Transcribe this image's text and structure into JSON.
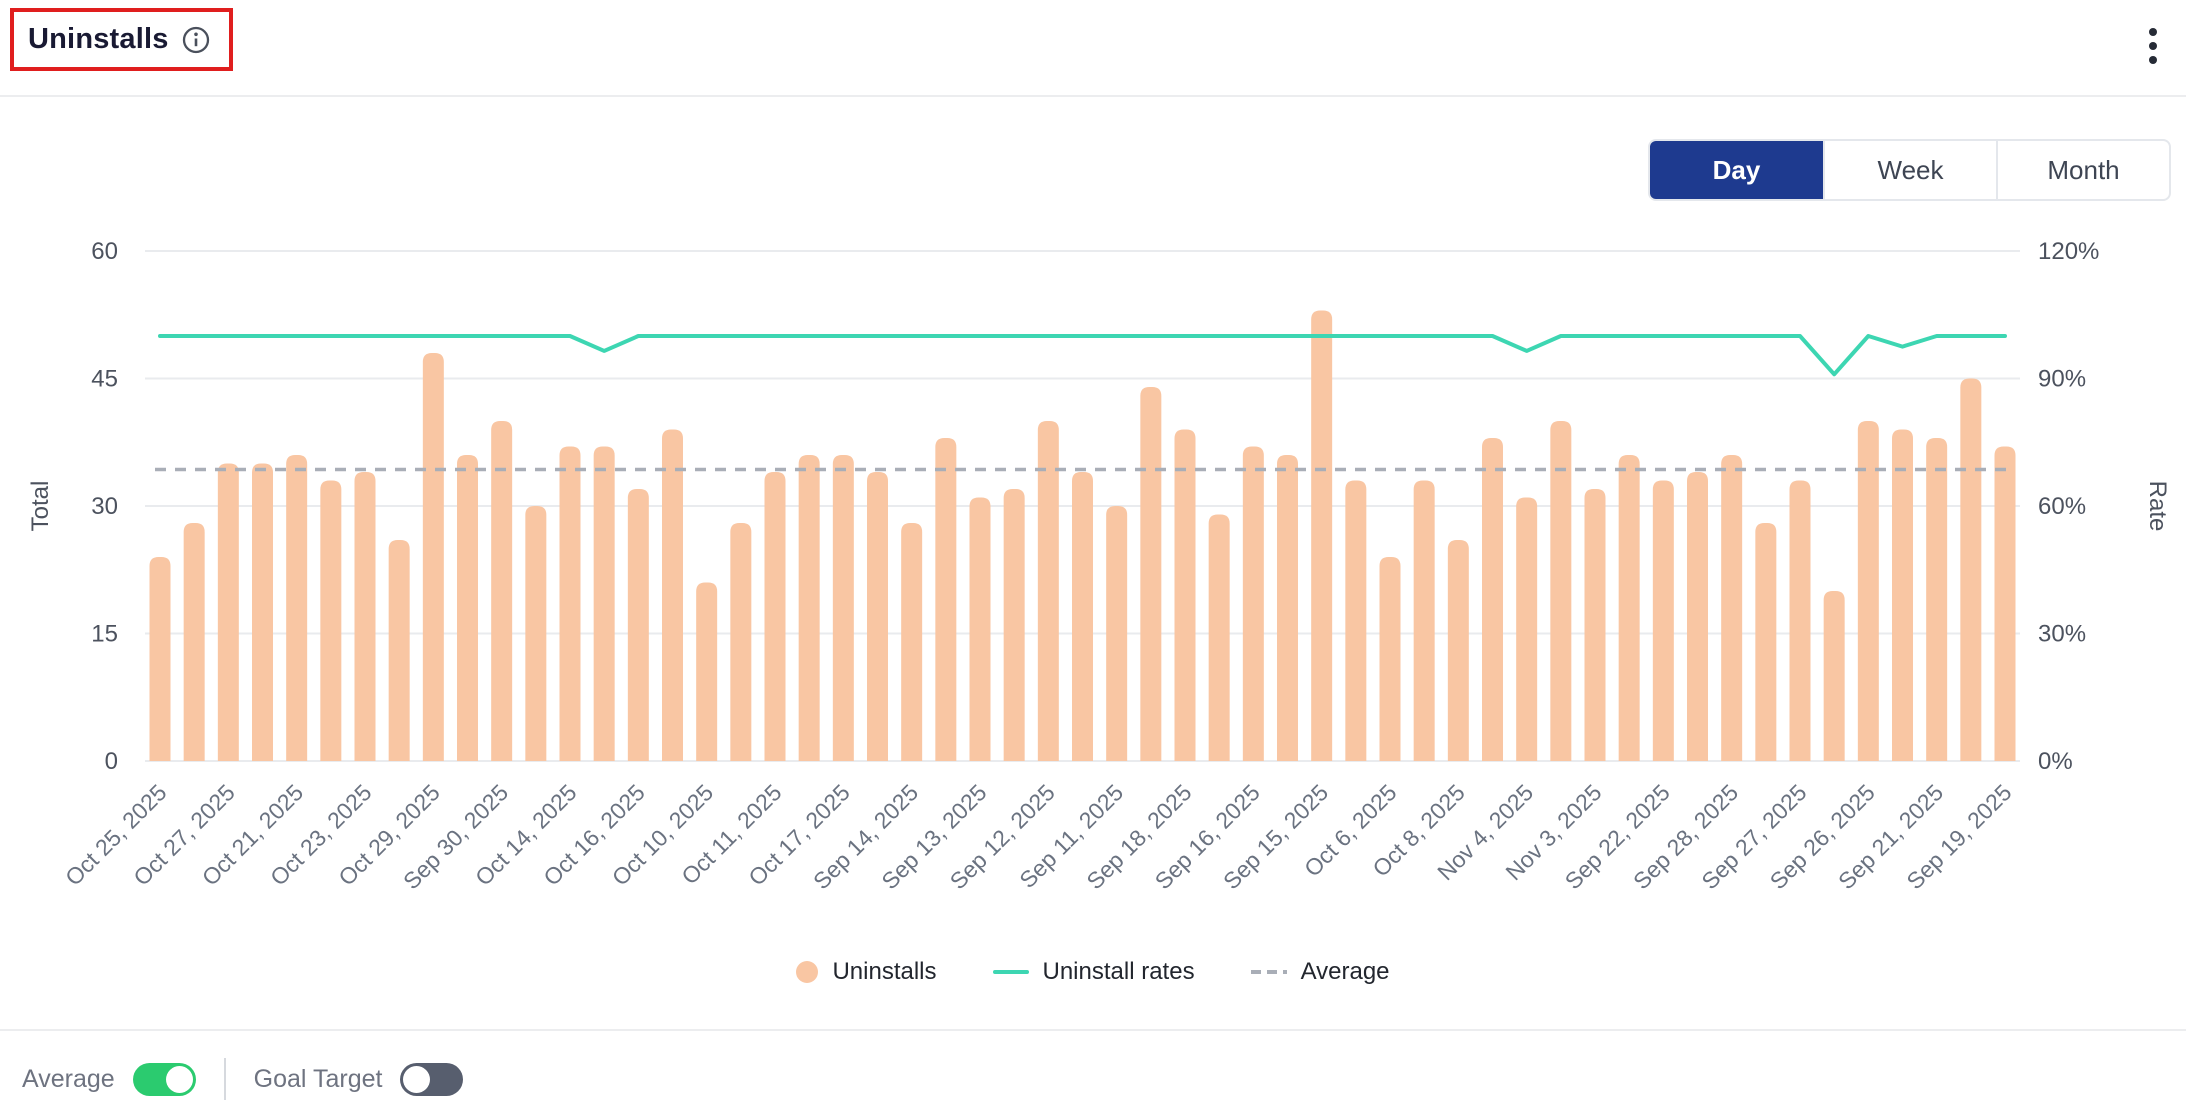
{
  "header": {
    "title": "Uninstalls"
  },
  "menu": {
    "kebab": "more-options"
  },
  "period_toggle": {
    "options": [
      "Day",
      "Week",
      "Month"
    ],
    "selected": "Day"
  },
  "colors": {
    "bar": "#F9C6A3",
    "rate_line": "#3DD6B2",
    "average_line": "#A9AEB7",
    "accent_selected": "#1E3A8F",
    "toggle_on": "#2BCB6F",
    "toggle_off": "#575E6E",
    "highlight_box": "#E01E1E"
  },
  "chart_data": {
    "type": "bar",
    "title": "Uninstalls",
    "grid": true,
    "legend_position": "bottom",
    "left_axis": {
      "label": "Total",
      "ticks": [
        0,
        15,
        30,
        45,
        60
      ],
      "max": 60
    },
    "right_axis": {
      "label": "Rate",
      "ticks": [
        "0%",
        "30%",
        "60%",
        "90%",
        "120%"
      ],
      "tick_values": [
        0,
        30,
        60,
        90,
        120
      ],
      "max": 120
    },
    "label_every": 2,
    "x_labels": [
      "Oct 25, 2025",
      "Oct 27, 2025",
      "Oct 21, 2025",
      "Oct 23, 2025",
      "Oct 29, 2025",
      "Sep 30, 2025",
      "Oct 14, 2025",
      "Oct 16, 2025",
      "Oct 10, 2025",
      "Oct 11, 2025",
      "Oct 17, 2025",
      "Sep 14, 2025",
      "Sep 13, 2025",
      "Sep 12, 2025",
      "Sep 11, 2025",
      "Sep 18, 2025",
      "Sep 16, 2025",
      "Sep 15, 2025",
      "Oct 6, 2025",
      "Oct 8, 2025",
      "Nov 4, 2025",
      "Nov 3, 2025",
      "Sep 22, 2025",
      "Sep 28, 2025",
      "Sep 27, 2025",
      "Sep 26, 2025",
      "Sep 21, 2025",
      "Sep 19, 2025"
    ],
    "series": [
      {
        "name": "Uninstalls",
        "type": "bar",
        "color": "#F9C6A3",
        "values": [
          24,
          28,
          35,
          35,
          36,
          33,
          34,
          26,
          48,
          36,
          40,
          30,
          37,
          37,
          32,
          39,
          21,
          28,
          34,
          36,
          36,
          34,
          28,
          38,
          31,
          32,
          40,
          34,
          30,
          44,
          39,
          29,
          37,
          36,
          53,
          33,
          24,
          33,
          26,
          38,
          31,
          40,
          32,
          36,
          33,
          34,
          36,
          28,
          33,
          20,
          40,
          39,
          38,
          45,
          37
        ]
      },
      {
        "name": "Uninstall rates",
        "type": "line",
        "color": "#3DD6B2",
        "values_pct": [
          100,
          100,
          100,
          100,
          100,
          100,
          100,
          100,
          100,
          100,
          100,
          100,
          100,
          96.5,
          100,
          100,
          100,
          100,
          100,
          100,
          100,
          100,
          100,
          100,
          100,
          100,
          100,
          100,
          100,
          100,
          100,
          100,
          100,
          100,
          100,
          100,
          100,
          100,
          100,
          100,
          96.5,
          100,
          100,
          100,
          100,
          100,
          100,
          100,
          100,
          91,
          100,
          97.5,
          100,
          100,
          100
        ]
      },
      {
        "name": "Average",
        "type": "dashed-line",
        "color": "#A9AEB7",
        "value": 34.3
      }
    ],
    "legend": [
      "Uninstalls",
      "Uninstall rates",
      "Average"
    ]
  },
  "footer": {
    "average_label": "Average",
    "average_on": true,
    "goal_label": "Goal Target",
    "goal_on": false
  }
}
